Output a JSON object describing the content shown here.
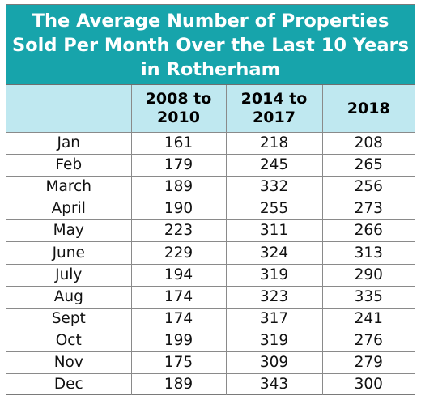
{
  "chart_data": {
    "type": "table",
    "title": "The Average Number of Properties\nSold Per Month Over the Last 10 Years\nin Rotherham",
    "columns": [
      "",
      "2008 to\n2010",
      "2014 to\n2017",
      "2018"
    ],
    "rows": [
      {
        "month": "Jan",
        "values": [
          "161",
          "218",
          "208"
        ]
      },
      {
        "month": "Feb",
        "values": [
          "179",
          "245",
          "265"
        ]
      },
      {
        "month": "March",
        "values": [
          "189",
          "332",
          "256"
        ]
      },
      {
        "month": "April",
        "values": [
          "190",
          "255",
          "273"
        ]
      },
      {
        "month": "May",
        "values": [
          "223",
          "311",
          "266"
        ]
      },
      {
        "month": "June",
        "values": [
          "229",
          "324",
          "313"
        ]
      },
      {
        "month": "July",
        "values": [
          "194",
          "319",
          "290"
        ]
      },
      {
        "month": "Aug",
        "values": [
          "174",
          "323",
          "335"
        ]
      },
      {
        "month": "Sept",
        "values": [
          "174",
          "317",
          "241"
        ]
      },
      {
        "month": "Oct",
        "values": [
          "199",
          "319",
          "276"
        ]
      },
      {
        "month": "Nov",
        "values": [
          "175",
          "309",
          "279"
        ]
      },
      {
        "month": "Dec",
        "values": [
          "189",
          "343",
          "300"
        ]
      }
    ],
    "colors": {
      "title_bg": "#17a4ab",
      "title_text": "#ffffff",
      "header_bg": "#bfe8f0"
    }
  }
}
